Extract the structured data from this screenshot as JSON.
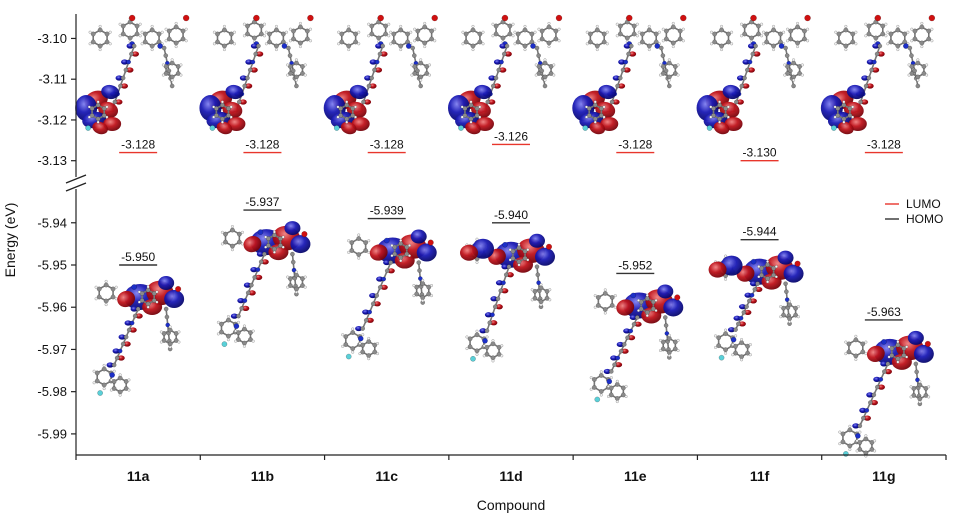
{
  "chart_data": {
    "type": "scatter",
    "xlabel": "Compound",
    "ylabel": "Energy (eV)",
    "categories": [
      "11a",
      "11b",
      "11c",
      "11d",
      "11e",
      "11f",
      "11g"
    ],
    "axis_break": true,
    "upper_axis": {
      "ylim": [
        -3.134,
        -3.094
      ],
      "ticks": [
        -3.1,
        -3.11,
        -3.12,
        -3.13
      ],
      "tick_labels": [
        "-3.10",
        "-3.11",
        "-3.12",
        "-3.13"
      ]
    },
    "lower_axis": {
      "ylim": [
        -5.995,
        -5.932
      ],
      "ticks": [
        -5.94,
        -5.95,
        -5.96,
        -5.97,
        -5.98,
        -5.99
      ],
      "tick_labels": [
        "-5.94",
        "-5.95",
        "-5.96",
        "-5.97",
        "-5.98",
        "-5.99"
      ]
    },
    "series": [
      {
        "name": "LUMO",
        "color": "#e8362c",
        "values": [
          -3.128,
          -3.128,
          -3.128,
          -3.126,
          -3.128,
          -3.13,
          -3.128
        ],
        "labels": [
          "-3.128",
          "-3.128",
          "-3.128",
          "-3.126",
          "-3.128",
          "-3.130",
          "-3.128"
        ]
      },
      {
        "name": "HOMO",
        "color": "#333333",
        "values": [
          -5.95,
          -5.937,
          -5.939,
          -5.94,
          -5.952,
          -5.944,
          -5.963
        ],
        "labels": [
          "-5.950",
          "-5.937",
          "-5.939",
          "-5.940",
          "-5.952",
          "-5.944",
          "-5.963"
        ]
      }
    ],
    "legend_position": "right",
    "orbital_colors": {
      "positive": "#c0141c",
      "negative": "#1a1ab5",
      "carbon": "#8a8a8a",
      "nitrogen": "#1c2fc8",
      "oxygen": "#d01010",
      "fluorine": "#5ad0d8"
    }
  }
}
